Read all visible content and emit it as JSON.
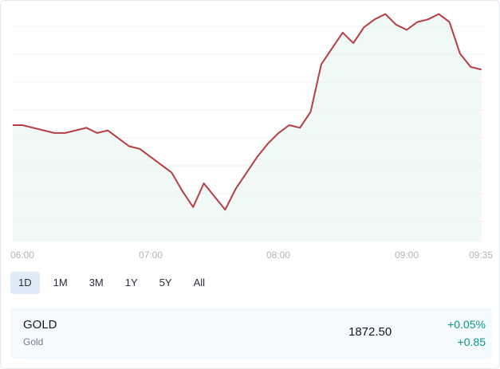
{
  "chart_data": {
    "type": "area",
    "x_ticks": [
      "06:00",
      "07:00",
      "08:00",
      "09:00",
      "09:35"
    ],
    "ylim": [
      1867.0,
      1875.5
    ],
    "grid": true,
    "line_color": "#b83c42",
    "fill_color": "#e8f5f1",
    "x": [
      "06:00",
      "06:05",
      "06:10",
      "06:15",
      "06:20",
      "06:25",
      "06:30",
      "06:35",
      "06:40",
      "06:45",
      "06:50",
      "06:55",
      "07:00",
      "07:05",
      "07:10",
      "07:15",
      "07:20",
      "07:25",
      "07:30",
      "07:35",
      "07:40",
      "07:45",
      "07:50",
      "07:55",
      "08:00",
      "08:05",
      "08:10",
      "08:15",
      "08:20",
      "08:25",
      "08:30",
      "08:35",
      "08:40",
      "08:45",
      "08:50",
      "08:55",
      "09:00",
      "09:05",
      "09:10",
      "09:15",
      "09:20",
      "09:25",
      "09:30",
      "09:35"
    ],
    "values": [
      1871.1,
      1871.0,
      1870.9,
      1870.8,
      1870.8,
      1870.9,
      1871.0,
      1870.8,
      1870.9,
      1870.6,
      1870.3,
      1870.2,
      1869.9,
      1869.6,
      1869.3,
      1868.6,
      1868.0,
      1868.9,
      1868.4,
      1867.9,
      1868.7,
      1869.3,
      1869.9,
      1870.4,
      1870.8,
      1871.1,
      1871.0,
      1871.6,
      1873.4,
      1874.0,
      1874.6,
      1874.2,
      1874.8,
      1875.1,
      1875.3,
      1874.9,
      1874.7,
      1875.0,
      1875.1,
      1875.3,
      1875.0,
      1873.8,
      1873.3,
      1873.2
    ]
  },
  "ranges": [
    {
      "label": "1D",
      "active": true
    },
    {
      "label": "1M"
    },
    {
      "label": "3M"
    },
    {
      "label": "1Y"
    },
    {
      "label": "5Y"
    },
    {
      "label": "All"
    }
  ],
  "quote": {
    "symbol": "GOLD",
    "description": "Gold",
    "price": "1872.50",
    "change_percent": "+0.05%",
    "change_abs": "+0.85",
    "change_color": "#089981"
  }
}
